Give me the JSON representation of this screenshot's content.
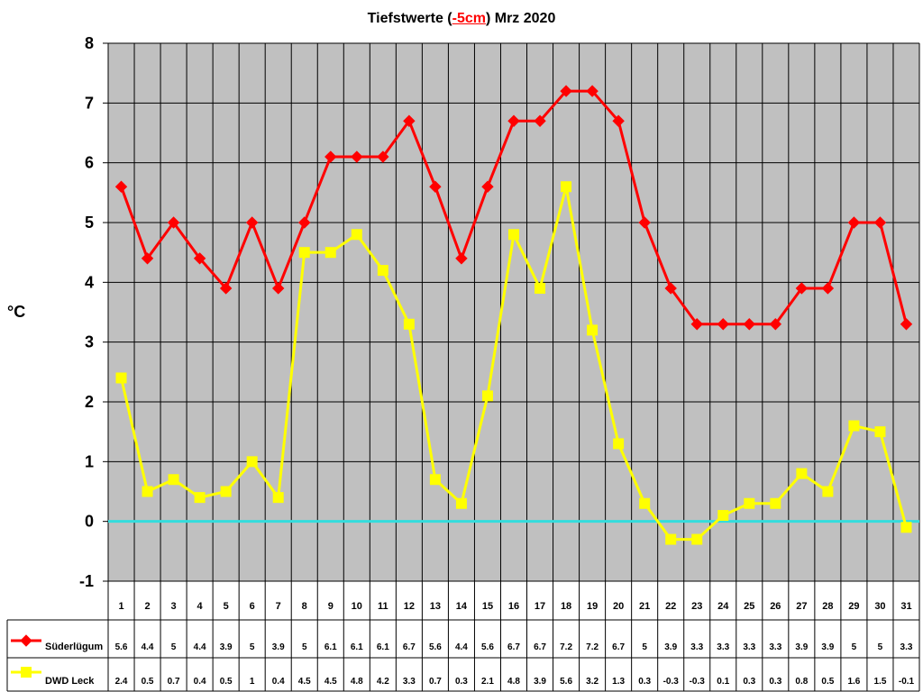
{
  "chart_data": {
    "type": "line",
    "title": {
      "prefix": "Tiefstwerte (",
      "highlight": "-5cm",
      "suffix": ") Mrz 2020"
    },
    "title_highlight_color": "#FF0000",
    "xlabel": "",
    "ylabel": "°C",
    "ylim": [
      -1,
      8
    ],
    "yticks": [
      8,
      7,
      6,
      5,
      4,
      3,
      2,
      1,
      0,
      -1
    ],
    "grid": true,
    "plot_background": "#C0C0C0",
    "reference_line": {
      "value": 0,
      "color": "#33DDDD"
    },
    "legend": "bottom-left",
    "data_table": true,
    "categories": [
      "1",
      "2",
      "3",
      "4",
      "5",
      "6",
      "7",
      "8",
      "9",
      "10",
      "11",
      "12",
      "13",
      "14",
      "15",
      "16",
      "17",
      "18",
      "19",
      "20",
      "21",
      "22",
      "23",
      "24",
      "25",
      "26",
      "27",
      "28",
      "29",
      "30",
      "31"
    ],
    "series": [
      {
        "name": "Süderlügum",
        "color": "#FF0000",
        "marker": "diamond",
        "values": [
          5.6,
          4.4,
          5,
          4.4,
          3.9,
          5,
          3.9,
          5,
          6.1,
          6.1,
          6.1,
          6.7,
          5.6,
          4.4,
          5.6,
          6.7,
          6.7,
          7.2,
          7.2,
          6.7,
          5,
          3.9,
          3.3,
          3.3,
          3.3,
          3.3,
          3.9,
          3.9,
          5,
          5,
          3.3
        ]
      },
      {
        "name": "DWD Leck",
        "color": "#FFFF00",
        "marker": "square",
        "values": [
          2.4,
          0.5,
          0.7,
          0.4,
          0.5,
          1,
          0.4,
          4.5,
          4.5,
          4.8,
          4.2,
          3.3,
          0.7,
          0.3,
          2.1,
          4.8,
          3.9,
          5.6,
          3.2,
          1.3,
          0.3,
          -0.3,
          -0.3,
          0.1,
          0.3,
          0.3,
          0.8,
          0.5,
          1.6,
          1.5,
          -0.1
        ]
      }
    ]
  }
}
